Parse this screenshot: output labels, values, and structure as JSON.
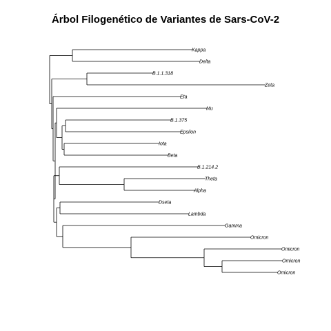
{
  "title": "Árbol Filogenético de Variantes de Sars-CoV-2",
  "tree": {
    "children": [
      {
        "children": [
          {
            "label": "Kappa"
          },
          {
            "label": "Delta"
          }
        ]
      },
      {
        "children": [
          {
            "children": [
              {
                "label": "B.1.1.318"
              },
              {
                "label": "Zeta"
              }
            ]
          },
          {
            "children": [
              {
                "label": "Eta"
              },
              {
                "children": [
                  {
                    "children": [
                      {
                        "label": "Mu"
                      },
                      {
                        "children": [
                          {
                            "children": [
                              {
                                "label": "B.1.375"
                              },
                              {
                                "label": "Epsilon"
                              }
                            ]
                          },
                          {
                            "children": [
                              {
                                "label": "Iota"
                              },
                              {
                                "label": "Beta"
                              }
                            ]
                          }
                        ]
                      }
                    ]
                  },
                  {
                    "children": [
                      {
                        "children": [
                          {
                            "label": "B.1.214.2"
                          },
                          {
                            "children": [
                              {
                                "label": "Theta"
                              },
                              {
                                "label": "Alpha"
                              }
                            ]
                          }
                        ]
                      },
                      {
                        "children": [
                          {
                            "children": [
                              {
                                "label": "Dseta"
                              },
                              {
                                "label": "Lambda"
                              }
                            ]
                          },
                          {
                            "children": [
                              {
                                "label": "Gamma"
                              },
                              {
                                "children": [
                                  {
                                    "label": "Omicron"
                                  },
                                  {
                                    "children": [
                                      {
                                        "label": "Omicron"
                                      },
                                      {
                                        "children": [
                                          {
                                            "label": "Omicron"
                                          },
                                          {
                                            "label": "Omicron"
                                          }
                                        ]
                                      }
                                    ]
                                  }
                                ]
                              }
                            ]
                          }
                        ]
                      }
                    ]
                  }
                ]
              }
            ]
          }
        ]
      }
    ]
  }
}
